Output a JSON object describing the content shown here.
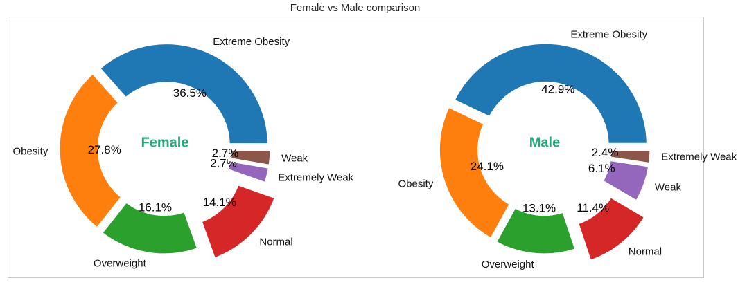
{
  "title": "Female vs Male comparison",
  "chart_data": [
    {
      "type": "pie",
      "name": "Female",
      "center_label": "Female",
      "center_color": "#23a97a",
      "slices": [
        {
          "label": "Extreme Obesity",
          "value": 36.5,
          "pct_label": "36.5%",
          "color": "#1f77b4",
          "explode": 0.04
        },
        {
          "label": "Obesity",
          "value": 27.8,
          "pct_label": "27.8%",
          "color": "#ff7f0e",
          "explode": 0.04
        },
        {
          "label": "Overweight",
          "value": 16.1,
          "pct_label": "16.1%",
          "color": "#2ca02c",
          "explode": 0.04
        },
        {
          "label": "Normal",
          "value": 14.1,
          "pct_label": "14.1%",
          "color": "#d62728",
          "explode": 0.2
        },
        {
          "label": "Extremely Weak",
          "value": 2.7,
          "pct_label": "2.7%",
          "color": "#9467bd",
          "explode": 0.04
        },
        {
          "label": "Weak",
          "value": 2.7,
          "pct_label": "2.7%",
          "color": "#8c564b",
          "explode": 0.04
        }
      ]
    },
    {
      "type": "pie",
      "name": "Male",
      "center_label": "Male",
      "center_color": "#23a97a",
      "slices": [
        {
          "label": "Extreme Obesity",
          "value": 42.9,
          "pct_label": "42.9%",
          "color": "#1f77b4",
          "explode": 0.04
        },
        {
          "label": "Obesity",
          "value": 24.1,
          "pct_label": "24.1%",
          "color": "#ff7f0e",
          "explode": 0.04
        },
        {
          "label": "Overweight",
          "value": 13.1,
          "pct_label": "13.1%",
          "color": "#2ca02c",
          "explode": 0.04
        },
        {
          "label": "Normal",
          "value": 11.4,
          "pct_label": "11.4%",
          "color": "#d62728",
          "explode": 0.2
        },
        {
          "label": "Weak",
          "value": 6.1,
          "pct_label": "6.1%",
          "color": "#9467bd",
          "explode": 0.04
        },
        {
          "label": "Extremely Weak",
          "value": 2.4,
          "pct_label": "2.4%",
          "color": "#8c564b",
          "explode": 0.04
        }
      ]
    }
  ]
}
